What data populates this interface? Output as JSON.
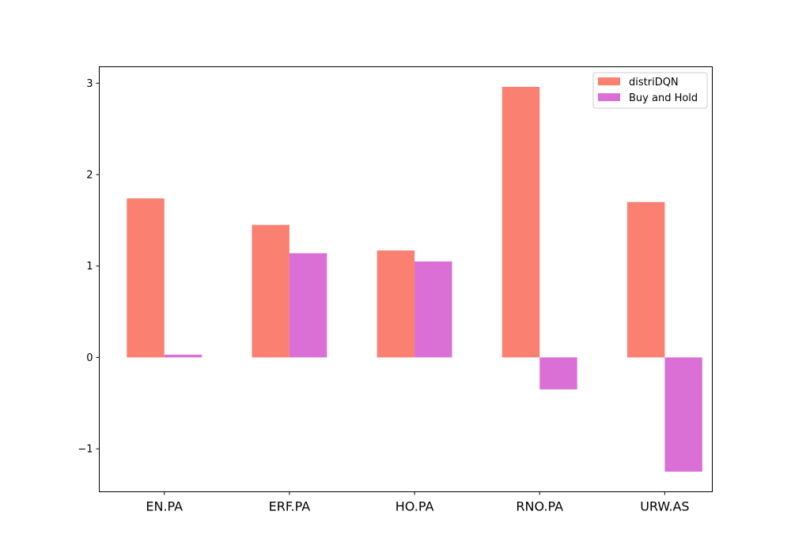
{
  "chart_data": {
    "type": "bar",
    "categories": [
      "EN.PA",
      "ERF.PA",
      "HO.PA",
      "RNO.PA",
      "URW.AS"
    ],
    "series": [
      {
        "name": "distriDQN",
        "values": [
          1.74,
          1.45,
          1.17,
          2.96,
          1.7
        ],
        "color": "#fa8072"
      },
      {
        "name": "Buy and Hold",
        "values": [
          0.03,
          1.14,
          1.05,
          -0.35,
          -1.25
        ],
        "color": "#da70d6"
      }
    ],
    "yticks": [
      "−1",
      "0",
      "1",
      "2",
      "3"
    ],
    "ylim": [
      -1.47,
      3.18
    ],
    "grid": false,
    "legend_position": "top-right"
  }
}
